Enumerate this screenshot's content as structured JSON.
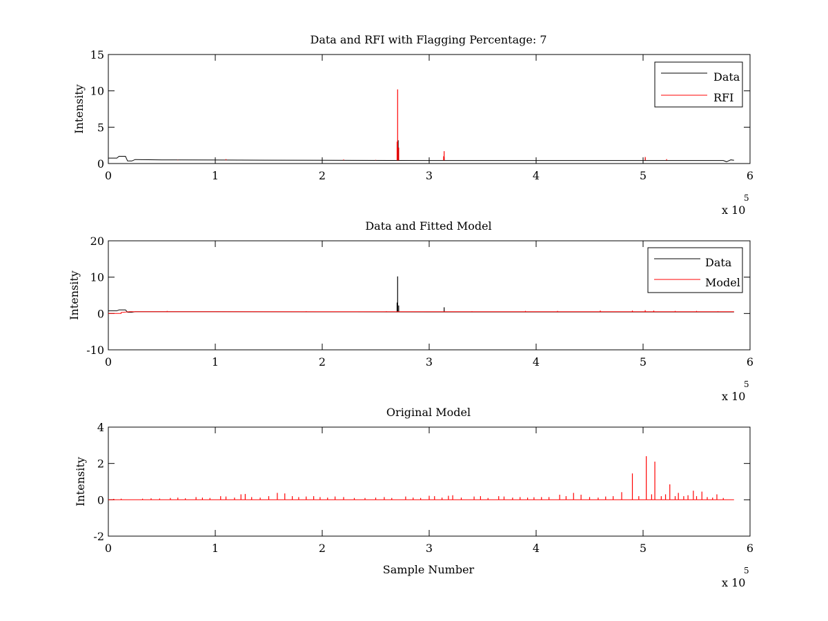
{
  "figure": {
    "background": "#ffffff"
  },
  "colors": {
    "data": "#000000",
    "rfi": "#ff0000",
    "model": "#ff0000",
    "axes": "#000000"
  },
  "chart_data": [
    {
      "type": "line",
      "title": "Data and RFI with Flagging Percentage: 7",
      "xlabel": "",
      "ylabel": "Intensity",
      "xlim": [
        0,
        6
      ],
      "ylim": [
        0,
        15
      ],
      "xticks": [
        "0",
        "1",
        "2",
        "3",
        "4",
        "5",
        "6"
      ],
      "yticks": [
        "0",
        "5",
        "10",
        "15"
      ],
      "x_exponent_label": "x 10",
      "x_exponent_power": "5",
      "legend_position": "top-right",
      "series": [
        {
          "name": "Data",
          "color": "#000000",
          "baseline": [
            [
              0,
              0.75
            ],
            [
              0.08,
              0.75
            ],
            [
              0.1,
              1.0
            ],
            [
              0.16,
              1.0
            ],
            [
              0.18,
              0.35
            ],
            [
              0.22,
              0.35
            ],
            [
              0.25,
              0.55
            ],
            [
              0.5,
              0.5
            ],
            [
              1.0,
              0.48
            ],
            [
              2.0,
              0.45
            ],
            [
              3.0,
              0.42
            ],
            [
              4.0,
              0.42
            ],
            [
              5.0,
              0.42
            ],
            [
              5.75,
              0.42
            ],
            [
              5.78,
              0.25
            ],
            [
              5.82,
              0.5
            ],
            [
              5.85,
              0.45
            ]
          ],
          "spikes": [
            [
              2.71,
              3.2
            ],
            [
              3.14,
              0.9
            ],
            [
              5.02,
              0.8
            ]
          ]
        },
        {
          "name": "RFI",
          "color": "#ff0000",
          "baseline": [],
          "spikes": [
            [
              2.705,
              10.2
            ],
            [
              2.7,
              3.0
            ],
            [
              2.715,
              2.2
            ],
            [
              3.14,
              1.7
            ],
            [
              3.135,
              1.0
            ],
            [
              0.65,
              0.5
            ],
            [
              1.1,
              0.6
            ],
            [
              2.2,
              0.55
            ],
            [
              2.5,
              0.5
            ],
            [
              5.02,
              0.9
            ],
            [
              5.22,
              0.6
            ]
          ]
        }
      ]
    },
    {
      "type": "line",
      "title": "Data and Fitted Model",
      "xlabel": "",
      "ylabel": "Intensity",
      "xlim": [
        0,
        6
      ],
      "ylim": [
        -10,
        20
      ],
      "xticks": [
        "0",
        "1",
        "2",
        "3",
        "4",
        "5",
        "6"
      ],
      "yticks": [
        "-10",
        "0",
        "10",
        "20"
      ],
      "x_exponent_label": "x 10",
      "x_exponent_power": "5",
      "legend_position": "top-right",
      "series": [
        {
          "name": "Data",
          "color": "#000000",
          "baseline": [
            [
              0,
              0.75
            ],
            [
              0.08,
              0.75
            ],
            [
              0.1,
              1.0
            ],
            [
              0.16,
              1.0
            ],
            [
              0.18,
              0.35
            ],
            [
              0.22,
              0.35
            ],
            [
              0.25,
              0.5
            ],
            [
              1.0,
              0.48
            ],
            [
              2.0,
              0.45
            ],
            [
              3.0,
              0.42
            ],
            [
              4.0,
              0.42
            ],
            [
              5.0,
              0.42
            ],
            [
              5.85,
              0.42
            ]
          ],
          "spikes": [
            [
              2.705,
              10.2
            ],
            [
              2.7,
              3.0
            ],
            [
              2.715,
              2.2
            ],
            [
              3.14,
              1.7
            ]
          ]
        },
        {
          "name": "Model",
          "color": "#ff0000",
          "baseline": [
            [
              0,
              0.0
            ],
            [
              0.12,
              0.0
            ],
            [
              0.12,
              0.3
            ],
            [
              0.2,
              0.5
            ],
            [
              1.0,
              0.5
            ],
            [
              2.0,
              0.5
            ],
            [
              3.0,
              0.5
            ],
            [
              4.0,
              0.5
            ],
            [
              5.0,
              0.5
            ],
            [
              5.85,
              0.5
            ]
          ],
          "spikes": [
            [
              0.55,
              0.7
            ],
            [
              1.85,
              0.6
            ],
            [
              2.6,
              0.6
            ],
            [
              3.4,
              0.6
            ],
            [
              3.9,
              0.7
            ],
            [
              4.2,
              0.7
            ],
            [
              4.6,
              0.8
            ],
            [
              4.9,
              0.8
            ],
            [
              5.02,
              0.9
            ],
            [
              5.1,
              0.8
            ],
            [
              5.3,
              0.7
            ],
            [
              5.5,
              0.7
            ],
            [
              5.7,
              0.6
            ]
          ]
        }
      ]
    },
    {
      "type": "line",
      "title": "Original Model",
      "xlabel": "Sample Number",
      "ylabel": "Intensity",
      "xlim": [
        0,
        6
      ],
      "ylim": [
        -2,
        4
      ],
      "xticks": [
        "0",
        "1",
        "2",
        "3",
        "4",
        "5",
        "6"
      ],
      "yticks": [
        "-2",
        "0",
        "2",
        "4"
      ],
      "x_exponent_label": "x 10",
      "x_exponent_power": "5",
      "legend_position": "none",
      "series": [
        {
          "color": "#ff0000",
          "baseline": [
            [
              0,
              0
            ],
            [
              5.85,
              0
            ]
          ],
          "spikes": [
            [
              0.05,
              0.05
            ],
            [
              0.12,
              0.06
            ],
            [
              0.32,
              0.06
            ],
            [
              0.4,
              0.08
            ],
            [
              0.48,
              0.07
            ],
            [
              0.58,
              0.1
            ],
            [
              0.65,
              0.12
            ],
            [
              0.72,
              0.08
            ],
            [
              0.82,
              0.15
            ],
            [
              0.88,
              0.12
            ],
            [
              0.95,
              0.1
            ],
            [
              1.05,
              0.2
            ],
            [
              1.1,
              0.18
            ],
            [
              1.18,
              0.12
            ],
            [
              1.24,
              0.3
            ],
            [
              1.28,
              0.32
            ],
            [
              1.34,
              0.15
            ],
            [
              1.42,
              0.12
            ],
            [
              1.5,
              0.2
            ],
            [
              1.58,
              0.38
            ],
            [
              1.65,
              0.35
            ],
            [
              1.72,
              0.2
            ],
            [
              1.78,
              0.15
            ],
            [
              1.85,
              0.18
            ],
            [
              1.92,
              0.2
            ],
            [
              1.98,
              0.15
            ],
            [
              2.05,
              0.12
            ],
            [
              2.12,
              0.18
            ],
            [
              2.2,
              0.15
            ],
            [
              2.3,
              0.1
            ],
            [
              2.4,
              0.1
            ],
            [
              2.5,
              0.12
            ],
            [
              2.58,
              0.15
            ],
            [
              2.65,
              0.1
            ],
            [
              2.78,
              0.18
            ],
            [
              2.85,
              0.12
            ],
            [
              2.92,
              0.1
            ],
            [
              3.0,
              0.22
            ],
            [
              3.05,
              0.2
            ],
            [
              3.12,
              0.12
            ],
            [
              3.18,
              0.22
            ],
            [
              3.22,
              0.25
            ],
            [
              3.3,
              0.12
            ],
            [
              3.42,
              0.18
            ],
            [
              3.48,
              0.2
            ],
            [
              3.55,
              0.1
            ],
            [
              3.65,
              0.2
            ],
            [
              3.7,
              0.18
            ],
            [
              3.78,
              0.12
            ],
            [
              3.85,
              0.15
            ],
            [
              3.92,
              0.12
            ],
            [
              3.98,
              0.14
            ],
            [
              4.05,
              0.15
            ],
            [
              4.12,
              0.15
            ],
            [
              4.22,
              0.28
            ],
            [
              4.28,
              0.2
            ],
            [
              4.35,
              0.38
            ],
            [
              4.42,
              0.28
            ],
            [
              4.5,
              0.15
            ],
            [
              4.58,
              0.12
            ],
            [
              4.65,
              0.18
            ],
            [
              4.72,
              0.2
            ],
            [
              4.8,
              0.42
            ],
            [
              4.9,
              1.45
            ],
            [
              4.96,
              0.2
            ],
            [
              5.03,
              2.4
            ],
            [
              5.08,
              0.3
            ],
            [
              5.11,
              2.1
            ],
            [
              5.17,
              0.2
            ],
            [
              5.21,
              0.3
            ],
            [
              5.25,
              0.85
            ],
            [
              5.3,
              0.2
            ],
            [
              5.33,
              0.38
            ],
            [
              5.38,
              0.2
            ],
            [
              5.42,
              0.25
            ],
            [
              5.47,
              0.5
            ],
            [
              5.5,
              0.2
            ],
            [
              5.55,
              0.45
            ],
            [
              5.6,
              0.15
            ],
            [
              5.65,
              0.12
            ],
            [
              5.69,
              0.3
            ],
            [
              5.75,
              0.1
            ]
          ]
        }
      ]
    }
  ]
}
